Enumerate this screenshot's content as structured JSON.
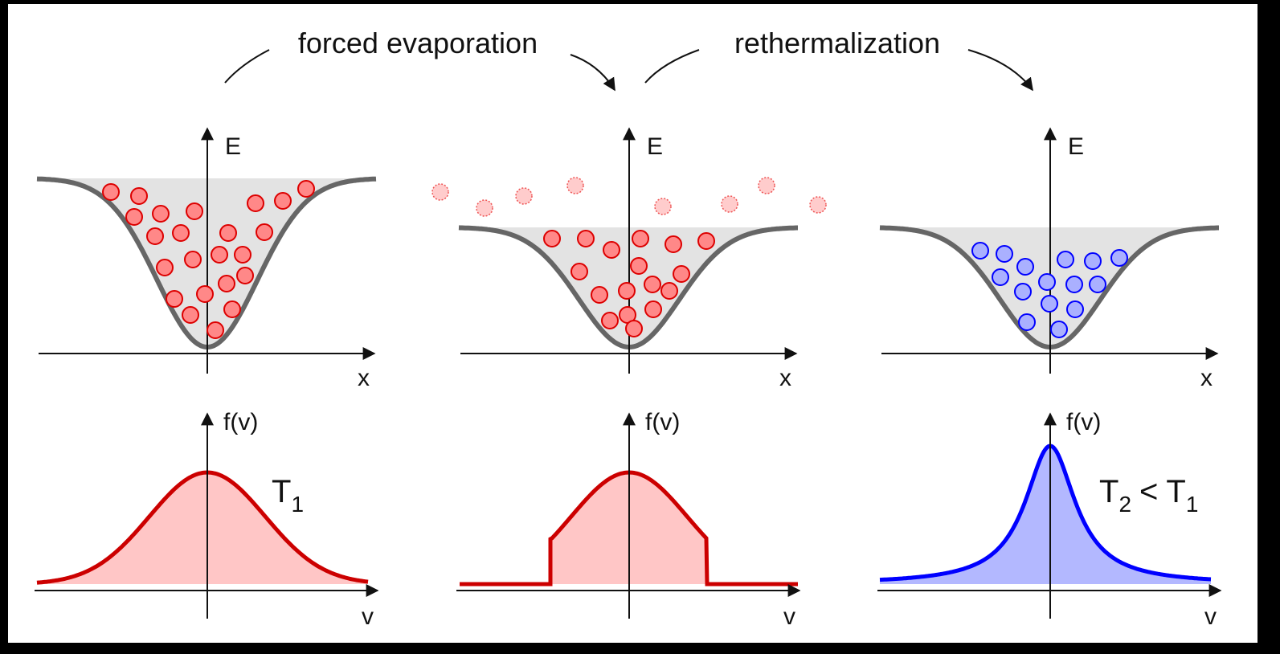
{
  "transitions": [
    "forced evaporation",
    "rethermalization"
  ],
  "panels": [
    {
      "energy_axis": "E",
      "position_axis": "x",
      "distribution_axis": "f(v)",
      "velocity_axis": "v"
    },
    {
      "energy_axis": "E",
      "position_axis": "x",
      "distribution_axis": "f(v)",
      "velocity_axis": "v"
    },
    {
      "energy_axis": "E",
      "position_axis": "x",
      "distribution_axis": "f(v)",
      "velocity_axis": "v"
    }
  ],
  "temperatures": {
    "initial": {
      "symbol": "T",
      "subscript": "1"
    },
    "final": {
      "symbol": "T",
      "subscript": "2",
      "relation": "<",
      "compare_symbol": "T",
      "compare_subscript": "1"
    }
  }
}
